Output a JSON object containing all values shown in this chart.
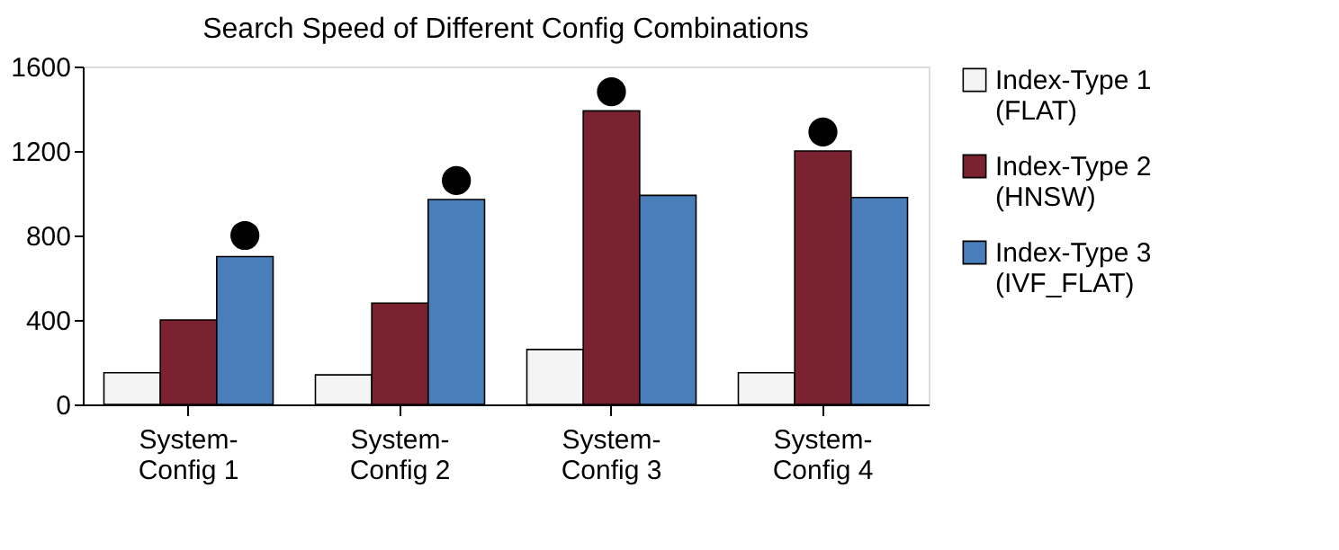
{
  "chart_data": {
    "type": "bar",
    "title": "Search Speed of Different Config Combinations",
    "categories": [
      "System-Config 1",
      "System-Config 2",
      "System-Config 3",
      "System-Config 4"
    ],
    "series": [
      {
        "name": "Index-Type 1 (FLAT)",
        "color": "#f4f4f4",
        "values": [
          150,
          140,
          260,
          150
        ]
      },
      {
        "name": "Index-Type 2 (HNSW)",
        "color": "#7b2230",
        "values": [
          400,
          480,
          1390,
          1200
        ]
      },
      {
        "name": "Index-Type 3 (IVF_FLAT)",
        "color": "#4a7ebb",
        "values": [
          700,
          970,
          990,
          980
        ]
      },
      {
        "type": "scatter",
        "color": "#000000",
        "x": [
          "System-Config 1",
          "System-Config 2",
          "System-Config 3",
          "System-Config 4"
        ],
        "values": [
          800,
          1060,
          1480,
          1290
        ]
      }
    ],
    "ylim": [
      0,
      1600
    ],
    "yticks": [
      0,
      400,
      800,
      1200,
      1600
    ],
    "grid": false,
    "legend": "right",
    "marker": "circle"
  }
}
